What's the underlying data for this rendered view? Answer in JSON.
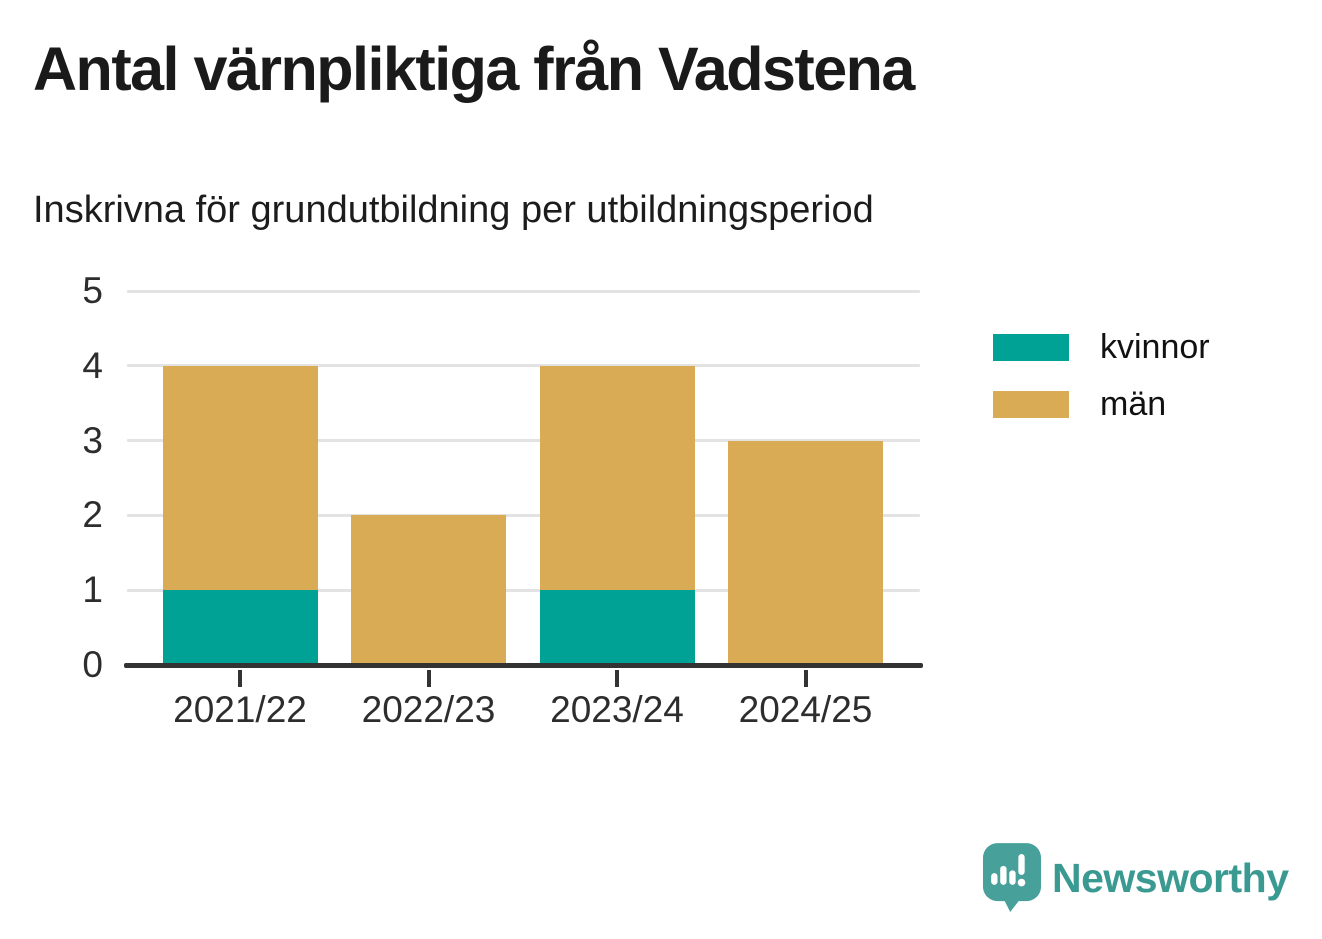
{
  "header": {
    "title": "Antal värnpliktiga från Vadstena",
    "subtitle": "Inskrivna för grundutbildning per utbildningsperiod"
  },
  "chart_data": {
    "type": "bar",
    "stacked": true,
    "title": "Antal värnpliktiga från Vadstena",
    "subtitle": "Inskrivna för grundutbildning per utbildningsperiod",
    "categories": [
      "2021/22",
      "2022/23",
      "2023/24",
      "2024/25"
    ],
    "series": [
      {
        "name": "kvinnor",
        "color": "#00a295",
        "values": [
          1,
          0,
          1,
          0
        ]
      },
      {
        "name": "män",
        "color": "#d9ab55",
        "values": [
          3,
          2,
          3,
          3
        ]
      }
    ],
    "totals": [
      4,
      2,
      4,
      3
    ],
    "xlabel": "",
    "ylabel": "",
    "ylim": [
      0,
      5
    ],
    "yticks": [
      0,
      1,
      2,
      3,
      4,
      5
    ],
    "grid": true,
    "legend_position": "right"
  },
  "legend": {
    "items": [
      {
        "label": "kvinnor",
        "color": "#00a295"
      },
      {
        "label": "män",
        "color": "#d9ab55"
      }
    ]
  },
  "footer": {
    "logo_text": "Newsworthy",
    "logo_text_color": "#3a9a92",
    "logo_icon_color": "#47a099"
  },
  "colors": {
    "axis": "#333333",
    "grid": "#e3e3e3",
    "tick_label": "#2d2d2d"
  }
}
